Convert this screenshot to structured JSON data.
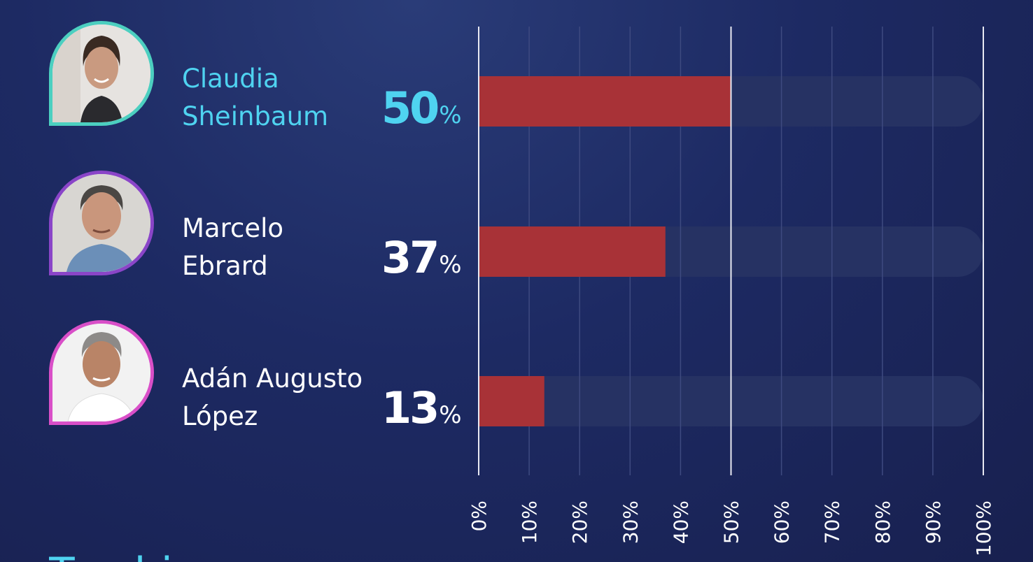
{
  "colors": {
    "bar": "#a83237",
    "track": "#263263",
    "grid_minor": "#3e4a80",
    "grid_major": "#e8e9f2",
    "highlight": "#4fd3f0",
    "text": "#ffffff"
  },
  "candidates": [
    {
      "name_line1": "Claudia",
      "name_line2": "Sheinbaum",
      "value": "50",
      "sign": "%",
      "ring_color": "#4ccfc0",
      "text_color": "#4fd3f0"
    },
    {
      "name_line1": "Marcelo",
      "name_line2": "Ebrard",
      "value": "37",
      "sign": "%",
      "ring_color": "#8a45c8",
      "text_color": "#ffffff"
    },
    {
      "name_line1": "Adán Augusto",
      "name_line2": "López",
      "value": "13",
      "sign": "%",
      "ring_color": "#d94fc8",
      "text_color": "#ffffff"
    }
  ],
  "chart_data": {
    "type": "bar",
    "orientation": "horizontal",
    "categories": [
      "Claudia Sheinbaum",
      "Marcelo Ebrard",
      "Adán Augusto López"
    ],
    "values": [
      50,
      37,
      13
    ],
    "xlim": [
      0,
      100
    ],
    "x_ticks": [
      "0%",
      "10%",
      "20%",
      "30%",
      "40%",
      "50%",
      "60%",
      "70%",
      "80%",
      "90%",
      "100%"
    ],
    "major_gridlines": [
      0,
      50,
      100
    ],
    "grid": true
  },
  "cut_text": "Tambi"
}
